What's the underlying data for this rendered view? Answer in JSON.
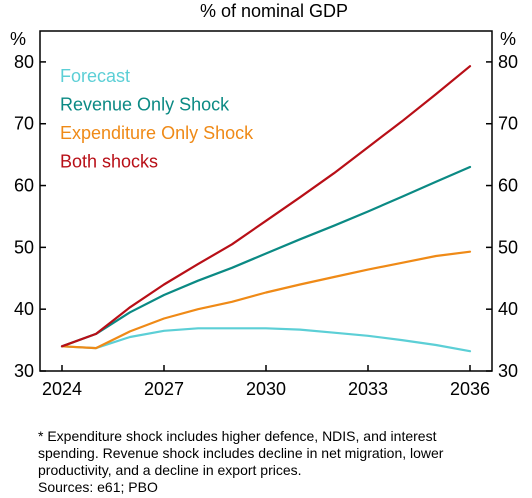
{
  "chart_data": {
    "type": "line",
    "title": "% of nominal GDP",
    "ylabel_left": "%",
    "ylabel_right": "%",
    "ylim": [
      30,
      85
    ],
    "yticks": [
      30,
      40,
      50,
      60,
      70,
      80
    ],
    "xlim": [
      2024,
      2036
    ],
    "xticks": [
      2024,
      2027,
      2030,
      2033,
      2036
    ],
    "grid": false,
    "legend_position": "top-left",
    "series": [
      {
        "name": "Forecast",
        "color": "#5ccfd6",
        "x": [
          2024,
          2025,
          2026,
          2027,
          2028,
          2029,
          2030,
          2031,
          2032,
          2033,
          2034,
          2035,
          2036
        ],
        "values": [
          34.0,
          33.7,
          35.5,
          36.5,
          36.9,
          36.9,
          36.9,
          36.7,
          36.2,
          35.7,
          35.0,
          34.2,
          33.2
        ]
      },
      {
        "name": "Revenue Only Shock",
        "color": "#0b8a84",
        "x": [
          2024,
          2025,
          2026,
          2027,
          2028,
          2029,
          2030,
          2031,
          2032,
          2033,
          2034,
          2035,
          2036
        ],
        "values": [
          34.0,
          36.0,
          39.5,
          42.3,
          44.6,
          46.7,
          49.0,
          51.3,
          53.5,
          55.8,
          58.2,
          60.6,
          63.0
        ]
      },
      {
        "name": "Expenditure Only Shock",
        "color": "#ef8a17",
        "x": [
          2024,
          2025,
          2026,
          2027,
          2028,
          2029,
          2030,
          2031,
          2032,
          2033,
          2034,
          2035,
          2036
        ],
        "values": [
          34.0,
          33.7,
          36.4,
          38.5,
          40.0,
          41.2,
          42.7,
          44.0,
          45.2,
          46.4,
          47.5,
          48.6,
          49.3
        ]
      },
      {
        "name": "Both shocks",
        "color": "#b80f17",
        "x": [
          2024,
          2025,
          2026,
          2027,
          2028,
          2029,
          2030,
          2031,
          2032,
          2033,
          2034,
          2035,
          2036
        ],
        "values": [
          34.0,
          36.0,
          40.3,
          44.0,
          47.3,
          50.5,
          54.3,
          58.1,
          62.0,
          66.2,
          70.4,
          74.8,
          79.3
        ]
      }
    ]
  },
  "footnote": {
    "lines": [
      "* Expenditure shock includes higher defence, NDIS, and interest",
      "spending. Revenue shock includes decline in net migration, lower",
      "productivity, and a decline in export prices.",
      "Sources: e61; PBO"
    ]
  }
}
